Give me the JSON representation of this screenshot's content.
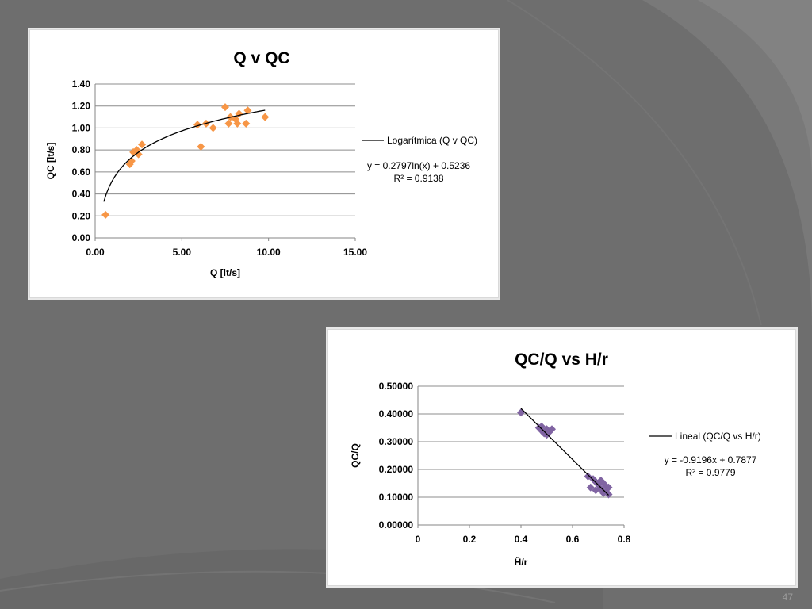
{
  "slide": {
    "page_number": "47"
  },
  "colors": {
    "background": "#6e6e6e",
    "panel": "#ffffff"
  },
  "chart_data": [
    {
      "type": "scatter",
      "title": "Q v QC",
      "xlabel": "Q [lt/s]",
      "ylabel": "QC [lt/s]",
      "xlim": [
        0,
        15
      ],
      "ylim": [
        0,
        1.4
      ],
      "x_ticks": [
        "0.00",
        "5.00",
        "10.00",
        "15.00"
      ],
      "y_ticks": [
        "0.00",
        "0.20",
        "0.40",
        "0.60",
        "0.80",
        "1.00",
        "1.20",
        "1.40"
      ],
      "grid": "horizontal",
      "marker": "diamond",
      "color": "#f79646",
      "points": [
        [
          0.6,
          0.21
        ],
        [
          2.0,
          0.67
        ],
        [
          2.1,
          0.7
        ],
        [
          2.2,
          0.78
        ],
        [
          2.4,
          0.8
        ],
        [
          2.5,
          0.76
        ],
        [
          2.7,
          0.85
        ],
        [
          5.9,
          1.03
        ],
        [
          6.1,
          0.83
        ],
        [
          6.4,
          1.04
        ],
        [
          6.8,
          1.0
        ],
        [
          7.5,
          1.19
        ],
        [
          7.7,
          1.04
        ],
        [
          7.8,
          1.1
        ],
        [
          8.1,
          1.08
        ],
        [
          8.2,
          1.04
        ],
        [
          8.3,
          1.13
        ],
        [
          8.7,
          1.04
        ],
        [
          8.8,
          1.16
        ],
        [
          9.8,
          1.1
        ]
      ],
      "trendline": {
        "kind": "log",
        "a": 0.2797,
        "b": 0.5236,
        "x_range": [
          0.5,
          9.8
        ],
        "color": "#000000",
        "legend": "Logarítmica (Q v QC)",
        "equation": "y = 0.2797ln(x) + 0.5236",
        "r2": "R² = 0.9138"
      },
      "legend_position": "right"
    },
    {
      "type": "scatter",
      "title": "QC/Q vs H/r",
      "xlabel": "Ĥ/r",
      "ylabel": "QC/Q",
      "xlim": [
        0,
        0.8
      ],
      "ylim": [
        0,
        0.5
      ],
      "x_ticks": [
        "0",
        "0.2",
        "0.4",
        "0.6",
        "0.8"
      ],
      "y_ticks": [
        "0.00000",
        "0.10000",
        "0.20000",
        "0.30000",
        "0.40000",
        "0.50000"
      ],
      "grid": "horizontal",
      "marker": "diamond",
      "color": "#8064a2",
      "points": [
        [
          0.4,
          0.405
        ],
        [
          0.47,
          0.35
        ],
        [
          0.48,
          0.34
        ],
        [
          0.48,
          0.355
        ],
        [
          0.49,
          0.33
        ],
        [
          0.5,
          0.325
        ],
        [
          0.5,
          0.345
        ],
        [
          0.51,
          0.335
        ],
        [
          0.52,
          0.345
        ],
        [
          0.66,
          0.175
        ],
        [
          0.67,
          0.135
        ],
        [
          0.68,
          0.165
        ],
        [
          0.69,
          0.155
        ],
        [
          0.69,
          0.125
        ],
        [
          0.7,
          0.145
        ],
        [
          0.71,
          0.16
        ],
        [
          0.71,
          0.13
        ],
        [
          0.72,
          0.115
        ],
        [
          0.72,
          0.15
        ],
        [
          0.73,
          0.12
        ],
        [
          0.73,
          0.14
        ],
        [
          0.74,
          0.11
        ],
        [
          0.74,
          0.135
        ]
      ],
      "trendline": {
        "kind": "linear",
        "a": -0.9196,
        "b": 0.7877,
        "x_range": [
          0.4,
          0.74
        ],
        "color": "#000000",
        "legend": "Lineal (QC/Q vs H/r)",
        "equation": "y = -0.9196x + 0.7877",
        "r2": "R² = 0.9779"
      },
      "legend_position": "right"
    }
  ]
}
